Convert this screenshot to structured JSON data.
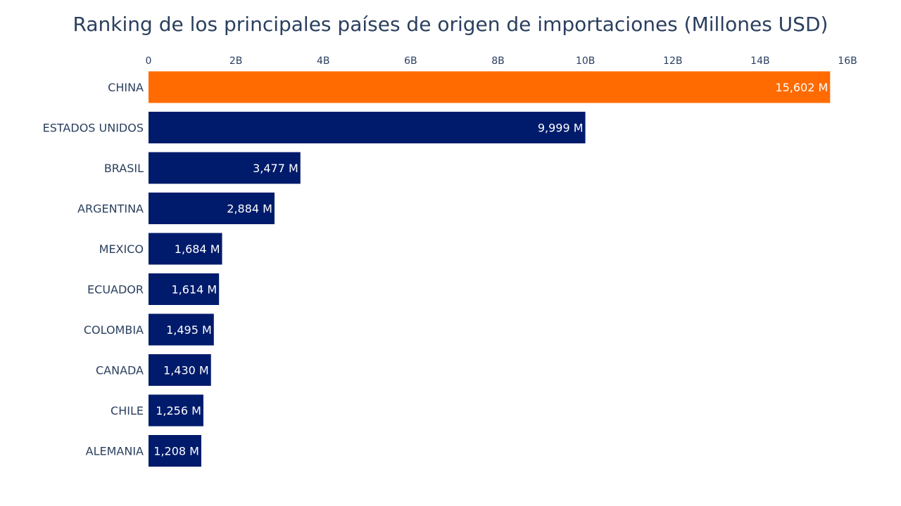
{
  "chart_data": {
    "type": "bar",
    "orientation": "horizontal",
    "title": "Ranking de los principales países de origen de importaciones (Millones USD)",
    "xlabel": "",
    "ylabel": "",
    "xlim": [
      0,
      16000000000
    ],
    "x_ticks": [
      0,
      2000000000,
      4000000000,
      6000000000,
      8000000000,
      10000000000,
      12000000000,
      14000000000,
      16000000000
    ],
    "x_tick_labels": [
      "0",
      "2B",
      "4B",
      "6B",
      "8B",
      "10B",
      "12B",
      "14B",
      "16B"
    ],
    "x_axis_position": "top",
    "grid": false,
    "categories": [
      "CHINA",
      "ESTADOS UNIDOS",
      "BRASIL",
      "ARGENTINA",
      "MEXICO",
      "ECUADOR",
      "COLOMBIA",
      "CANADA",
      "CHILE",
      "ALEMANIA"
    ],
    "values": [
      15602000000,
      9999000000,
      3477000000,
      2884000000,
      1684000000,
      1614000000,
      1495000000,
      1430000000,
      1256000000,
      1208000000
    ],
    "data_labels": [
      "15,602 M",
      "9,999 M",
      "3,477 M",
      "2,884 M",
      "1,684 M",
      "1,614 M",
      "1,495 M",
      "1,430 M",
      "1,256 M",
      "1,208 M"
    ],
    "highlight_color": "#ff6b00",
    "bar_color": "#001b6b",
    "text_color": "#2a3f5f",
    "label_color": "#ffffff"
  }
}
